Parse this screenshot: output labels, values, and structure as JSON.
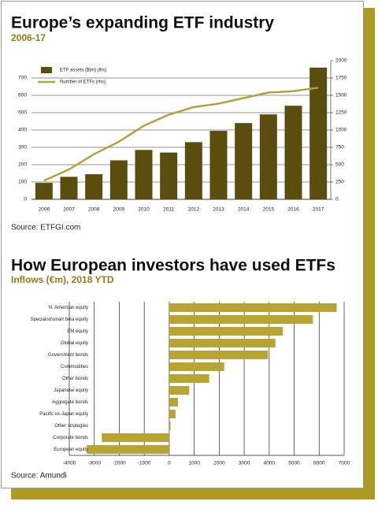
{
  "chart_data": [
    {
      "type": "bar",
      "title": "Europe’s expanding ETF industry",
      "subtitle": "2006-17",
      "source": "Source: ETFGI.com",
      "categories": [
        "2006",
        "2007",
        "2008",
        "2009",
        "2010",
        "2011",
        "2012",
        "2013",
        "2014",
        "2015",
        "2016",
        "2017"
      ],
      "series": [
        {
          "name": "ETF assets ($bn) (lhs)",
          "color": "#5a4d0e",
          "values": [
            95,
            130,
            145,
            225,
            285,
            270,
            330,
            395,
            440,
            490,
            540,
            760
          ]
        },
        {
          "name": "Number of ETFs (rhs)",
          "color": "#b3a23a",
          "type": "line",
          "axis": "y2",
          "values": [
            270,
            430,
            650,
            830,
            1060,
            1220,
            1330,
            1380,
            1460,
            1540,
            1560,
            1610
          ]
        }
      ],
      "ylim": [
        0,
        800
      ],
      "yticks": [
        0,
        100,
        200,
        300,
        400,
        500,
        600,
        700
      ],
      "y2lim": [
        0,
        2000
      ],
      "y2ticks": [
        0,
        250,
        500,
        750,
        1000,
        1250,
        1500,
        1750,
        2000
      ],
      "grid": true,
      "legend": "upper left"
    },
    {
      "type": "barh",
      "title": "How European investors have used ETFs",
      "subtitle": "Inflows (€m), 2018 YTD",
      "source": "Source: Amundi",
      "categories": [
        "N. American equity",
        "Specialist/smart beta equity",
        "EM equity",
        "Global equity",
        "Government bonds",
        "Commodities",
        "Other bonds",
        "Japanese equity",
        "Aggregate bonds",
        "Pacific ex-Japan equity",
        "Other strategies",
        "Corporate bonds",
        "European equity"
      ],
      "values": [
        6700,
        5750,
        4550,
        4250,
        3950,
        2200,
        1600,
        800,
        350,
        250,
        50,
        -2700,
        -3300
      ],
      "color": "#b8a433",
      "xlim": [
        -4000,
        7000
      ],
      "xticks": [
        -4000,
        -3000,
        -2000,
        -1000,
        0,
        1000,
        2000,
        3000,
        4000,
        5000,
        6000,
        7000
      ],
      "grid": true
    }
  ]
}
